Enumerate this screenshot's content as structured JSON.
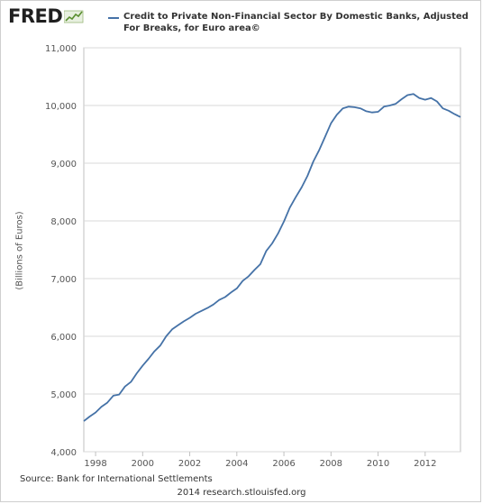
{
  "header": {
    "logo_text": "FRED",
    "logo_icon": "trend-line-icon"
  },
  "legend": {
    "line1": "Credit to Private Non-Financial Sector By Domestic Banks, Adjusted",
    "line2": "For Breaks, for Euro area©"
  },
  "footer": {
    "source": "Source: Bank for International Settlements",
    "credit": "2014 research.stlouisfed.org"
  },
  "colors": {
    "series": "#4572a7",
    "grid": "#d8d8d8",
    "plot_border": "#c0c0c0"
  },
  "chart_data": {
    "type": "line",
    "ylabel": "(Billions of Euros)",
    "xlabel": "",
    "ylim": [
      4000,
      11000
    ],
    "xlim": [
      1997.5,
      2013.5
    ],
    "yticks": [
      4000,
      5000,
      6000,
      7000,
      8000,
      9000,
      10000,
      11000
    ],
    "ytick_labels": [
      "4,000",
      "5,000",
      "6,000",
      "7,000",
      "8,000",
      "9,000",
      "10,000",
      "11,000"
    ],
    "xticks": [
      1998,
      2000,
      2002,
      2004,
      2006,
      2008,
      2010,
      2012
    ],
    "xtick_labels": [
      "1998",
      "2000",
      "2002",
      "2004",
      "2006",
      "2008",
      "2010",
      "2012"
    ],
    "grid": "horizontal",
    "series": [
      {
        "name": "Credit to Private Non-Financial Sector By Domestic Banks, Adjusted For Breaks, for Euro area",
        "points": [
          [
            1997.5,
            4530
          ],
          [
            1997.75,
            4610
          ],
          [
            1998.0,
            4680
          ],
          [
            1998.25,
            4780
          ],
          [
            1998.5,
            4850
          ],
          [
            1998.75,
            4970
          ],
          [
            1999.0,
            4990
          ],
          [
            1999.25,
            5130
          ],
          [
            1999.5,
            5210
          ],
          [
            1999.75,
            5360
          ],
          [
            2000.0,
            5490
          ],
          [
            2000.25,
            5610
          ],
          [
            2000.5,
            5740
          ],
          [
            2000.75,
            5840
          ],
          [
            2001.0,
            6000
          ],
          [
            2001.25,
            6120
          ],
          [
            2001.5,
            6190
          ],
          [
            2001.75,
            6260
          ],
          [
            2002.0,
            6320
          ],
          [
            2002.25,
            6390
          ],
          [
            2002.5,
            6440
          ],
          [
            2002.75,
            6490
          ],
          [
            2003.0,
            6550
          ],
          [
            2003.25,
            6630
          ],
          [
            2003.5,
            6680
          ],
          [
            2003.75,
            6760
          ],
          [
            2004.0,
            6830
          ],
          [
            2004.25,
            6960
          ],
          [
            2004.5,
            7040
          ],
          [
            2004.75,
            7150
          ],
          [
            2005.0,
            7250
          ],
          [
            2005.25,
            7480
          ],
          [
            2005.5,
            7610
          ],
          [
            2005.75,
            7780
          ],
          [
            2006.0,
            7990
          ],
          [
            2006.25,
            8230
          ],
          [
            2006.5,
            8410
          ],
          [
            2006.75,
            8580
          ],
          [
            2007.0,
            8780
          ],
          [
            2007.25,
            9030
          ],
          [
            2007.5,
            9230
          ],
          [
            2007.75,
            9460
          ],
          [
            2008.0,
            9690
          ],
          [
            2008.25,
            9840
          ],
          [
            2008.5,
            9950
          ],
          [
            2008.75,
            9980
          ],
          [
            2009.0,
            9970
          ],
          [
            2009.25,
            9950
          ],
          [
            2009.5,
            9900
          ],
          [
            2009.75,
            9880
          ],
          [
            2010.0,
            9890
          ],
          [
            2010.25,
            9980
          ],
          [
            2010.5,
            10000
          ],
          [
            2010.75,
            10030
          ],
          [
            2011.0,
            10110
          ],
          [
            2011.25,
            10180
          ],
          [
            2011.5,
            10200
          ],
          [
            2011.75,
            10130
          ],
          [
            2012.0,
            10100
          ],
          [
            2012.25,
            10130
          ],
          [
            2012.5,
            10070
          ],
          [
            2012.75,
            9950
          ],
          [
            2013.0,
            9910
          ],
          [
            2013.25,
            9850
          ],
          [
            2013.5,
            9800
          ]
        ]
      }
    ]
  }
}
